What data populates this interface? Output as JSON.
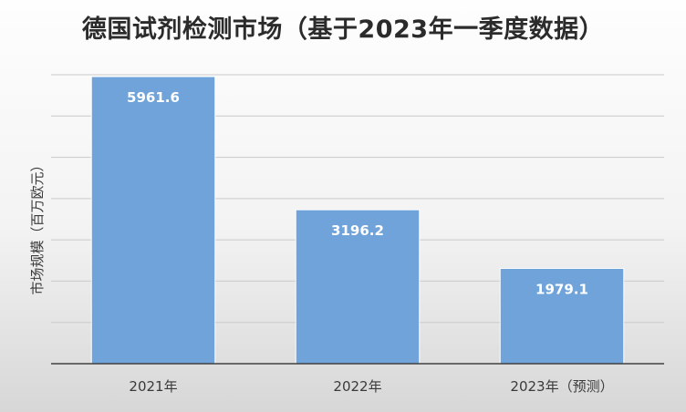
{
  "chart_data": {
    "type": "bar",
    "title": "德国试剂检测市场（基于2023年一季度数据）",
    "ylabel": "市场规模（百万欧元）",
    "xlabel": "",
    "categories": [
      "2021年",
      "2022年",
      "2023年（预测）"
    ],
    "values": [
      5961.6,
      3196.2,
      1979.1
    ],
    "value_labels": [
      "5961.6",
      "3196.2",
      "1979.1"
    ],
    "ylim": [
      0,
      6000
    ],
    "grid": true,
    "legend": "none",
    "bar_color": "#6fa3d9"
  }
}
